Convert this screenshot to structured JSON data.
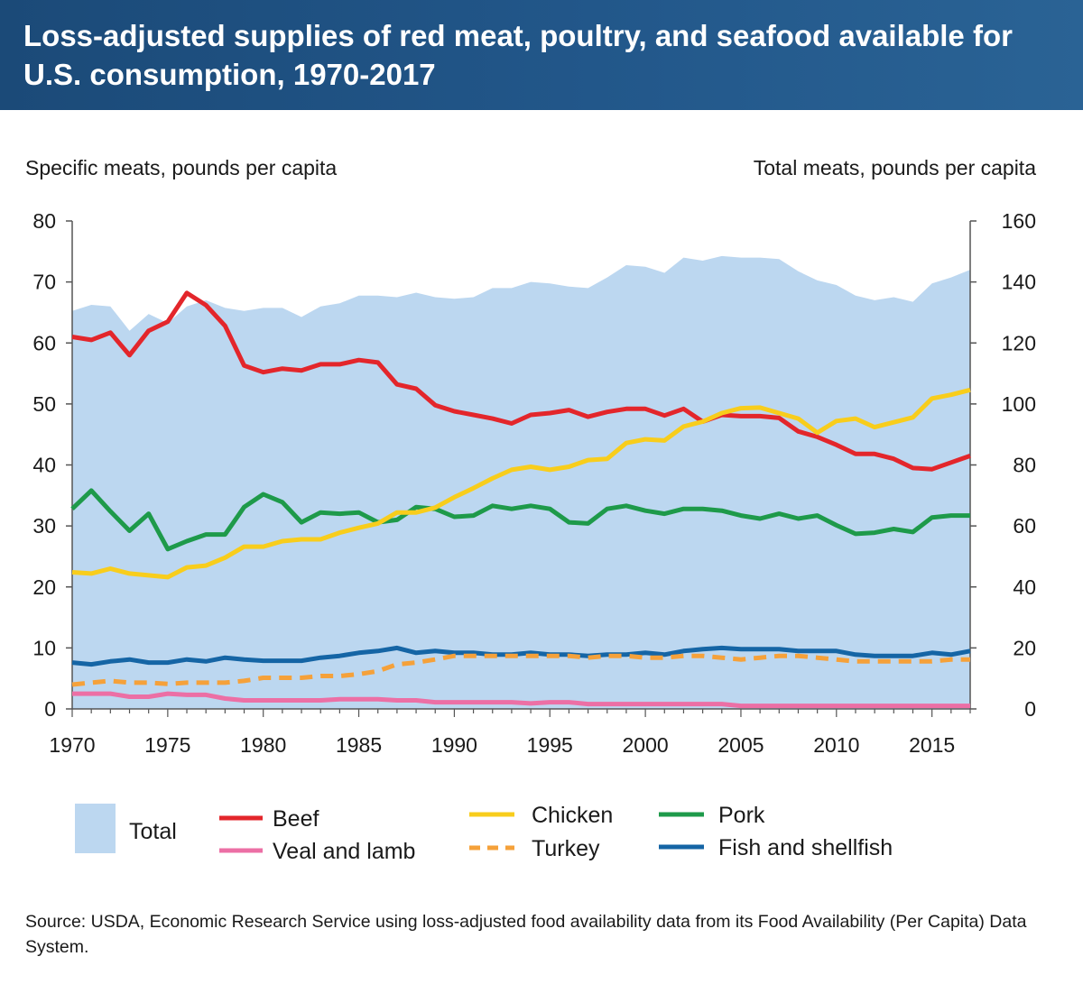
{
  "title": "Loss-adjusted supplies of red meat, poultry, and seafood available for U.S. consumption, 1970-2017",
  "source": "Source: USDA, Economic Research Service using loss-adjusted food availability data from its Food Availability (Per Capita) Data System.",
  "colors": {
    "header": "#1f5283",
    "total": "#bcd7f0",
    "beef": "#e3262b",
    "veal": "#ec6fa5",
    "chicken": "#f8cd1c",
    "turkey": "#f5a13a",
    "pork": "#1e9a4a",
    "fish": "#1565a5"
  },
  "chart_data": {
    "type": "line",
    "title": "Loss-adjusted supplies of red meat, poultry, and seafood available for U.S. consumption, 1970-2017",
    "ylabel": "Specific meats, pounds per capita",
    "y2label": "Total meats, pounds per capita",
    "ylim": [
      0,
      80
    ],
    "y2lim": [
      0,
      160
    ],
    "yticks": [
      "0",
      "10",
      "20",
      "30",
      "40",
      "50",
      "60",
      "70",
      "80"
    ],
    "y2ticks": [
      "0",
      "20",
      "40",
      "60",
      "80",
      "100",
      "120",
      "140",
      "160"
    ],
    "xticks": [
      "1970",
      "1975",
      "1980",
      "1985",
      "1990",
      "1995",
      "2000",
      "2005",
      "2010",
      "2015"
    ],
    "x": [
      1970,
      1971,
      1972,
      1973,
      1974,
      1975,
      1976,
      1977,
      1978,
      1979,
      1980,
      1981,
      1982,
      1983,
      1984,
      1985,
      1986,
      1987,
      1988,
      1989,
      1990,
      1991,
      1992,
      1993,
      1994,
      1995,
      1996,
      1997,
      1998,
      1999,
      2000,
      2001,
      2002,
      2003,
      2004,
      2005,
      2006,
      2007,
      2008,
      2009,
      2010,
      2011,
      2012,
      2013,
      2014,
      2015,
      2016,
      2017
    ],
    "legend": {
      "total": "Total",
      "beef": "Beef",
      "veal": "Veal and lamb",
      "chicken": "Chicken",
      "turkey": "Turkey",
      "pork": "Pork",
      "fish": "Fish and shellfish"
    },
    "series": [
      {
        "key": "total",
        "name": "Total",
        "type": "area",
        "axis": "right",
        "values": [
          130.5,
          132.5,
          132,
          124,
          129.5,
          126.5,
          132,
          134,
          131.5,
          130.5,
          131.5,
          131.5,
          128.5,
          132,
          133,
          135.5,
          135.5,
          135,
          136.5,
          135,
          134.5,
          135,
          138,
          138,
          140,
          139.5,
          138.5,
          138,
          141.5,
          145.5,
          145,
          143,
          148,
          147,
          148.5,
          148,
          148,
          147.5,
          143.5,
          140.5,
          139,
          135.5,
          134,
          135,
          133.5,
          139.5,
          141.5,
          144
        ]
      },
      {
        "key": "beef",
        "name": "Beef",
        "axis": "left",
        "values": [
          61,
          60.5,
          61.7,
          58,
          62,
          63.5,
          68.2,
          66.2,
          62.8,
          56.3,
          55.2,
          55.8,
          55.5,
          56.5,
          56.5,
          57.2,
          56.8,
          53.2,
          52.5,
          49.8,
          48.8,
          48.2,
          47.6,
          46.8,
          48.2,
          48.5,
          49,
          47.9,
          48.7,
          49.2,
          49.2,
          48.1,
          49.2,
          47.1,
          48.2,
          48,
          48,
          47.7,
          45.5,
          44.6,
          43.3,
          41.8,
          41.8,
          41,
          39.5,
          39.3,
          40.4,
          41.5
        ]
      },
      {
        "key": "pork",
        "name": "Pork",
        "axis": "left",
        "values": [
          32.8,
          35.8,
          32.4,
          29.2,
          32,
          26.2,
          27.5,
          28.6,
          28.6,
          33.1,
          35.2,
          33.9,
          30.6,
          32.2,
          32,
          32.2,
          30.6,
          31,
          33.1,
          32.8,
          31.5,
          31.7,
          33.3,
          32.8,
          33.3,
          32.8,
          30.6,
          30.4,
          32.8,
          33.3,
          32.5,
          32,
          32.8,
          32.8,
          32.5,
          31.7,
          31.2,
          32,
          31.2,
          31.7,
          30.1,
          28.7,
          28.9,
          29.5,
          29,
          31.4,
          31.7,
          31.7
        ]
      },
      {
        "key": "chicken",
        "name": "Chicken",
        "axis": "left",
        "values": [
          22.4,
          22.2,
          23,
          22.2,
          21.9,
          21.6,
          23.2,
          23.5,
          24.8,
          26.6,
          26.6,
          27.5,
          27.8,
          27.8,
          28.9,
          29.7,
          30.4,
          32.2,
          32.2,
          33,
          34.7,
          36.2,
          37.8,
          39.2,
          39.7,
          39.2,
          39.7,
          40.8,
          41,
          43.6,
          44.2,
          44,
          46.3,
          47.1,
          48.5,
          49.3,
          49.4,
          48.5,
          47.6,
          45.3,
          47.2,
          47.6,
          46.2,
          47,
          47.8,
          50.9,
          51.5,
          52.3
        ]
      },
      {
        "key": "fish",
        "name": "Fish and shellfish",
        "axis": "left",
        "values": [
          7.6,
          7.3,
          7.8,
          8.1,
          7.6,
          7.6,
          8.1,
          7.8,
          8.4,
          8.1,
          7.9,
          7.9,
          7.9,
          8.4,
          8.7,
          9.2,
          9.5,
          10,
          9.2,
          9.5,
          9.2,
          9.2,
          8.9,
          8.9,
          9.2,
          8.9,
          8.9,
          8.7,
          8.9,
          8.9,
          9.2,
          8.9,
          9.5,
          9.8,
          10,
          9.8,
          9.8,
          9.8,
          9.5,
          9.5,
          9.5,
          8.9,
          8.7,
          8.7,
          8.7,
          9.2,
          8.9,
          9.5
        ]
      },
      {
        "key": "turkey",
        "name": "Turkey",
        "axis": "left",
        "dashed": true,
        "values": [
          4,
          4.3,
          4.6,
          4.3,
          4.3,
          4.1,
          4.3,
          4.3,
          4.3,
          4.6,
          5.1,
          5.1,
          5.1,
          5.4,
          5.4,
          5.7,
          6.2,
          7.3,
          7.6,
          8.1,
          8.7,
          8.7,
          8.7,
          8.7,
          8.7,
          8.7,
          8.7,
          8.4,
          8.7,
          8.7,
          8.4,
          8.4,
          8.7,
          8.7,
          8.4,
          8.1,
          8.4,
          8.7,
          8.7,
          8.4,
          8.1,
          7.8,
          7.8,
          7.8,
          7.8,
          7.8,
          8.1,
          8.1
        ]
      },
      {
        "key": "veal",
        "name": "Veal and lamb",
        "axis": "left",
        "values": [
          2.5,
          2.5,
          2.5,
          2,
          2,
          2.5,
          2.3,
          2.3,
          1.7,
          1.4,
          1.4,
          1.4,
          1.4,
          1.4,
          1.6,
          1.6,
          1.6,
          1.4,
          1.4,
          1.1,
          1.1,
          1.1,
          1.1,
          1.1,
          0.9,
          1.1,
          1.1,
          0.8,
          0.8,
          0.8,
          0.8,
          0.8,
          0.8,
          0.8,
          0.8,
          0.5,
          0.5,
          0.5,
          0.5,
          0.5,
          0.5,
          0.5,
          0.5,
          0.5,
          0.5,
          0.5,
          0.5,
          0.5
        ]
      }
    ]
  }
}
